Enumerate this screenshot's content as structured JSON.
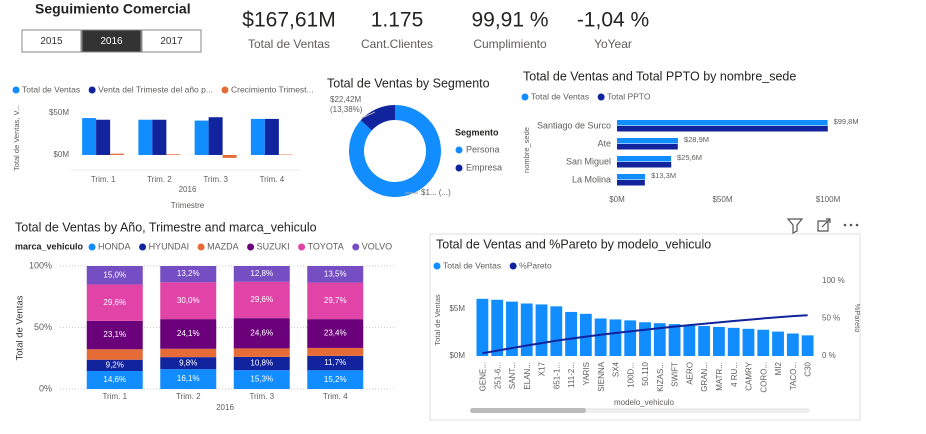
{
  "header": {
    "title": "Seguimiento Comercial",
    "years": [
      "2015",
      "2016",
      "2017"
    ],
    "selected_year": "2016"
  },
  "kpis": [
    {
      "value": "$167,61M",
      "label": "Total de Ventas"
    },
    {
      "value": "1.175",
      "label": "Cant.Clientes"
    },
    {
      "value": "99,91 %",
      "label": "Cumplimiento"
    },
    {
      "value": "-1,04 %",
      "label": "YoYear"
    }
  ],
  "chart_data": [
    {
      "type": "bar",
      "legend_position": "top-left",
      "categories": [
        "Trim. 1",
        "Trim. 2",
        "Trim. 3",
        "Trim. 4"
      ],
      "x_group": "2016",
      "xlabel": "Trimestre",
      "ylabel": "Total de Ventas, V...",
      "series": [
        {
          "name": "Total de Ventas",
          "color": "#118dff",
          "values": [
            44,
            42,
            41,
            43
          ]
        },
        {
          "name": "Venta del Trimeste del año p...",
          "color": "#12239e",
          "values": [
            42,
            42,
            45,
            43
          ]
        },
        {
          "name": "Crecimiento Trimest...",
          "color": "#e66c37",
          "values": [
            1.5,
            0.8,
            -3.5,
            0.5
          ]
        }
      ],
      "ylim": [
        -6,
        56
      ],
      "yticks": [
        {
          "value": 0,
          "label": "$0M"
        },
        {
          "value": 50,
          "label": "$50M"
        }
      ]
    },
    {
      "type": "donut",
      "title": "Total de Ventas by Segmento",
      "legend_title": "Segmento",
      "categories": [
        "Persona",
        "Empresa"
      ],
      "colors": [
        "#118dff",
        "#12239e"
      ],
      "values": [
        145.19,
        22.42
      ],
      "value_labels": [
        "$1... (...)",
        "$22,42M (13,38%)"
      ]
    },
    {
      "type": "hbar",
      "title": "Total de Ventas and Total PPTO by nombre_sede",
      "ylabel": "nombre_sede",
      "categories": [
        "Santiago de Surco",
        "Ate",
        "San Miguel",
        "La Molina"
      ],
      "series": [
        {
          "name": "Total de Ventas",
          "color": "#118dff",
          "values": [
            99.8,
            28.9,
            25.6,
            13.3
          ],
          "value_labels": [
            "$99,8M",
            "$28,9M",
            "$25,6M",
            "$13,3M"
          ]
        },
        {
          "name": "Total PPTO",
          "color": "#12239e",
          "values": [
            99.9,
            28.8,
            25.7,
            13.2
          ]
        }
      ],
      "xlim": [
        0,
        100
      ],
      "xticks": [
        {
          "value": 0,
          "label": "$0M"
        },
        {
          "value": 50,
          "label": "$50M"
        },
        {
          "value": 100,
          "label": "$100M"
        }
      ]
    },
    {
      "type": "stacked100",
      "title": "Total de Ventas by Año, Trimestre and marca_vehiculo",
      "legend_title": "marca_vehiculo",
      "categories": [
        "Trim. 1",
        "Trim. 2",
        "Trim. 3",
        "Trim. 4"
      ],
      "x_group": "2016",
      "ylabel": "Total de Ventas",
      "grid": true,
      "series": [
        {
          "name": "HONDA",
          "color": "#118dff",
          "values": [
            14.6,
            16.1,
            15.3,
            15.2
          ],
          "value_labels": [
            "14,6%",
            "16,1%",
            "15,3%",
            "15,2%"
          ]
        },
        {
          "name": "HYUNDAI",
          "color": "#12239e",
          "values": [
            9.2,
            9.8,
            10.8,
            11.7
          ],
          "value_labels": [
            "9,2%",
            "9,8%",
            "10,8%",
            "11,7%"
          ]
        },
        {
          "name": "MAZDA",
          "color": "#e66c37",
          "values": [
            8.5,
            6.8,
            6.9,
            6.5
          ],
          "value_labels": [
            null,
            null,
            null,
            null
          ]
        },
        {
          "name": "SUZUKI",
          "color": "#6b007b",
          "values": [
            23.1,
            24.1,
            24.6,
            23.4
          ],
          "value_labels": [
            "23,1%",
            "24,1%",
            "24,6%",
            "23,4%"
          ]
        },
        {
          "name": "TOYOTA",
          "color": "#e044a7",
          "values": [
            29.6,
            30.0,
            29.6,
            29.7
          ],
          "value_labels": [
            "29,6%",
            "30,0%",
            "29,6%",
            "29,7%"
          ]
        },
        {
          "name": "VOLVO",
          "color": "#744ec2",
          "values": [
            15.0,
            13.2,
            12.8,
            13.5
          ],
          "value_labels": [
            "15,0%",
            "13,2%",
            "12,8%",
            "13,5%"
          ]
        }
      ],
      "ylim": [
        0,
        100
      ],
      "yticks": [
        {
          "value": 0,
          "label": "0%"
        },
        {
          "value": 50,
          "label": "50%"
        },
        {
          "value": 100,
          "label": "100%"
        }
      ]
    },
    {
      "type": "pareto",
      "title": "Total de Ventas and %Pareto by modelo_vehiculo",
      "xlabel": "modelo_vehiculo",
      "ylabel": "Total de Ventas",
      "y2label": "%Pareto",
      "categories": [
        "GENE...",
        "251-6...",
        "SANT...",
        "ELAN...",
        "X17",
        "651-1...",
        "111-2...",
        "YARIS",
        "SIENNA",
        "SX4",
        "100D...",
        "50.110",
        "KIZAS...",
        "SWIFT",
        "AERO",
        "GRAN...",
        "MATR...",
        "4 RU...",
        "CAMRY",
        "CORO...",
        "MI2",
        "TACO...",
        "C30"
      ],
      "series": [
        {
          "name": "Total de Ventas",
          "color": "#118dff",
          "values": [
            6.1,
            6.0,
            5.8,
            5.6,
            5.5,
            5.3,
            4.7,
            4.5,
            4.0,
            3.9,
            3.8,
            3.6,
            3.5,
            3.4,
            3.3,
            3.2,
            3.1,
            3.0,
            2.9,
            2.8,
            2.6,
            2.4,
            2.2
          ]
        },
        {
          "name": "%Pareto",
          "color": "#12239e",
          "axis": "y2",
          "values": [
            3.6,
            7.2,
            10.6,
            14.0,
            17.2,
            20.4,
            23.2,
            25.9,
            28.3,
            30.6,
            32.9,
            35.0,
            37.1,
            39.1,
            41.1,
            43.0,
            44.9,
            46.7,
            48.4,
            50.1,
            51.7,
            53.1,
            54.4
          ]
        }
      ],
      "ylim": [
        0,
        8
      ],
      "yticks": [
        {
          "value": 0,
          "label": "$0M"
        },
        {
          "value": 5,
          "label": "$5M"
        }
      ],
      "y2lim": [
        0,
        100
      ],
      "y2ticks": [
        {
          "value": 0,
          "label": "0 %"
        },
        {
          "value": 50,
          "label": "50 %"
        },
        {
          "value": 100,
          "label": "100 %"
        }
      ]
    }
  ]
}
